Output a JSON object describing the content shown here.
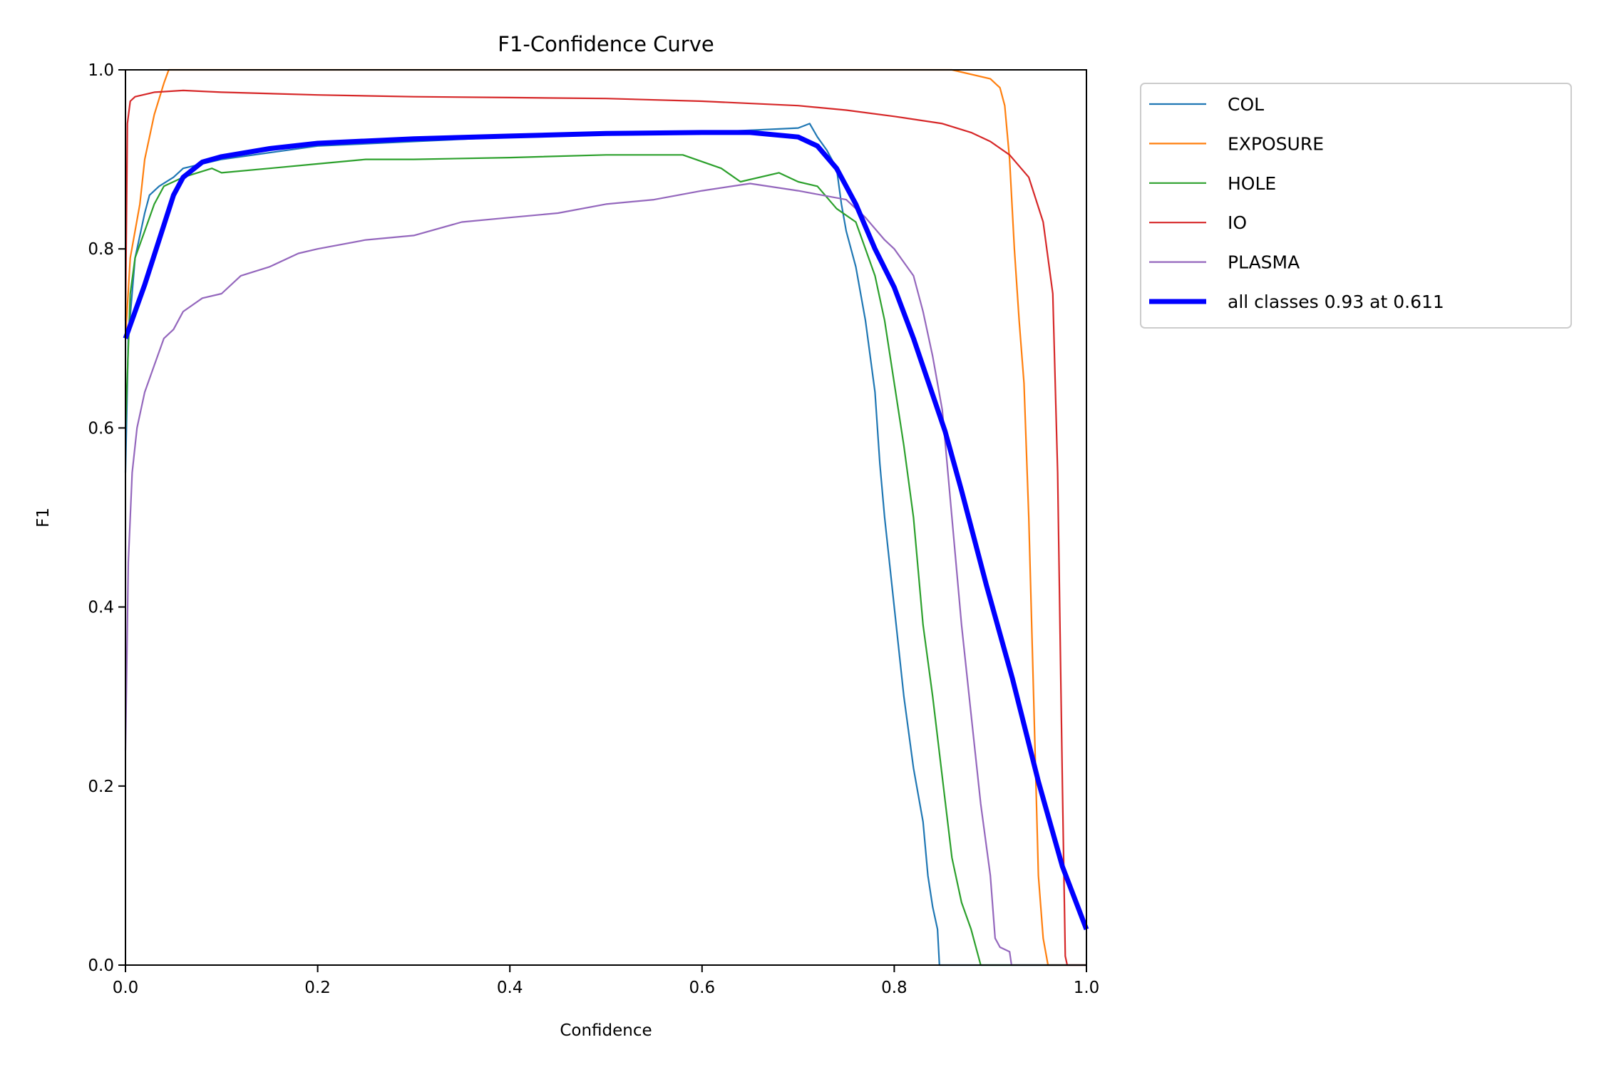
{
  "chart_data": {
    "type": "line",
    "title": "F1-Confidence Curve",
    "xlabel": "Confidence",
    "ylabel": "F1",
    "xlim": [
      0,
      1
    ],
    "ylim": [
      0,
      1
    ],
    "xticks": [
      "0.0",
      "0.2",
      "0.4",
      "0.6",
      "0.8",
      "1.0"
    ],
    "yticks": [
      "0.0",
      "0.2",
      "0.4",
      "0.6",
      "0.8",
      "1.0"
    ],
    "grid": false,
    "legend_position": "outside-top-right",
    "series": [
      {
        "name": "COL",
        "color": "#1f77b4",
        "width": "thin",
        "points": [
          [
            0,
            0.55
          ],
          [
            0.003,
            0.7
          ],
          [
            0.01,
            0.79
          ],
          [
            0.02,
            0.84
          ],
          [
            0.025,
            0.86
          ],
          [
            0.035,
            0.87
          ],
          [
            0.05,
            0.88
          ],
          [
            0.06,
            0.89
          ],
          [
            0.1,
            0.9
          ],
          [
            0.2,
            0.915
          ],
          [
            0.3,
            0.92
          ],
          [
            0.4,
            0.925
          ],
          [
            0.5,
            0.928
          ],
          [
            0.6,
            0.93
          ],
          [
            0.7,
            0.935
          ],
          [
            0.712,
            0.94
          ],
          [
            0.72,
            0.925
          ],
          [
            0.73,
            0.91
          ],
          [
            0.74,
            0.89
          ],
          [
            0.745,
            0.85
          ],
          [
            0.75,
            0.82
          ],
          [
            0.76,
            0.78
          ],
          [
            0.77,
            0.72
          ],
          [
            0.78,
            0.64
          ],
          [
            0.785,
            0.56
          ],
          [
            0.79,
            0.5
          ],
          [
            0.8,
            0.4
          ],
          [
            0.81,
            0.3
          ],
          [
            0.82,
            0.22
          ],
          [
            0.83,
            0.16
          ],
          [
            0.835,
            0.1
          ],
          [
            0.84,
            0.065
          ],
          [
            0.845,
            0.04
          ],
          [
            0.847,
            0
          ],
          [
            1,
            0
          ]
        ]
      },
      {
        "name": "EXPOSURE",
        "color": "#ff7f0e",
        "width": "thin",
        "points": [
          [
            0,
            0.7
          ],
          [
            0.005,
            0.79
          ],
          [
            0.015,
            0.85
          ],
          [
            0.02,
            0.9
          ],
          [
            0.03,
            0.95
          ],
          [
            0.04,
            0.985
          ],
          [
            0.045,
            1.0
          ],
          [
            0.86,
            1.0
          ],
          [
            0.9,
            0.99
          ],
          [
            0.91,
            0.98
          ],
          [
            0.915,
            0.96
          ],
          [
            0.92,
            0.9
          ],
          [
            0.925,
            0.8
          ],
          [
            0.93,
            0.72
          ],
          [
            0.935,
            0.65
          ],
          [
            0.94,
            0.5
          ],
          [
            0.945,
            0.3
          ],
          [
            0.95,
            0.1
          ],
          [
            0.955,
            0.03
          ],
          [
            0.96,
            0
          ],
          [
            1,
            0
          ]
        ]
      },
      {
        "name": "HOLE",
        "color": "#2ca02c",
        "width": "thin",
        "points": [
          [
            0,
            0.6
          ],
          [
            0.005,
            0.75
          ],
          [
            0.01,
            0.79
          ],
          [
            0.02,
            0.82
          ],
          [
            0.03,
            0.85
          ],
          [
            0.04,
            0.87
          ],
          [
            0.06,
            0.88
          ],
          [
            0.09,
            0.89
          ],
          [
            0.1,
            0.885
          ],
          [
            0.15,
            0.89
          ],
          [
            0.2,
            0.895
          ],
          [
            0.25,
            0.9
          ],
          [
            0.3,
            0.9
          ],
          [
            0.4,
            0.902
          ],
          [
            0.5,
            0.905
          ],
          [
            0.58,
            0.905
          ],
          [
            0.62,
            0.89
          ],
          [
            0.64,
            0.875
          ],
          [
            0.68,
            0.885
          ],
          [
            0.7,
            0.875
          ],
          [
            0.72,
            0.87
          ],
          [
            0.74,
            0.845
          ],
          [
            0.76,
            0.83
          ],
          [
            0.77,
            0.8
          ],
          [
            0.78,
            0.77
          ],
          [
            0.79,
            0.72
          ],
          [
            0.8,
            0.65
          ],
          [
            0.81,
            0.58
          ],
          [
            0.82,
            0.5
          ],
          [
            0.83,
            0.38
          ],
          [
            0.84,
            0.3
          ],
          [
            0.85,
            0.21
          ],
          [
            0.86,
            0.12
          ],
          [
            0.87,
            0.07
          ],
          [
            0.88,
            0.04
          ],
          [
            0.89,
            0
          ],
          [
            1,
            0
          ]
        ]
      },
      {
        "name": "IO",
        "color": "#d62728",
        "width": "thin",
        "points": [
          [
            0,
            0.72
          ],
          [
            0.002,
            0.94
          ],
          [
            0.005,
            0.965
          ],
          [
            0.01,
            0.97
          ],
          [
            0.03,
            0.975
          ],
          [
            0.06,
            0.977
          ],
          [
            0.1,
            0.975
          ],
          [
            0.2,
            0.972
          ],
          [
            0.3,
            0.97
          ],
          [
            0.4,
            0.969
          ],
          [
            0.5,
            0.968
          ],
          [
            0.6,
            0.965
          ],
          [
            0.7,
            0.96
          ],
          [
            0.75,
            0.955
          ],
          [
            0.8,
            0.948
          ],
          [
            0.85,
            0.94
          ],
          [
            0.88,
            0.93
          ],
          [
            0.9,
            0.92
          ],
          [
            0.92,
            0.905
          ],
          [
            0.94,
            0.88
          ],
          [
            0.955,
            0.83
          ],
          [
            0.965,
            0.75
          ],
          [
            0.97,
            0.55
          ],
          [
            0.975,
            0.2
          ],
          [
            0.978,
            0.01
          ],
          [
            0.98,
            0
          ],
          [
            1,
            0
          ]
        ]
      },
      {
        "name": "PLASMA",
        "color": "#9467bd",
        "width": "thin",
        "points": [
          [
            0,
            0.24
          ],
          [
            0.003,
            0.45
          ],
          [
            0.007,
            0.55
          ],
          [
            0.012,
            0.6
          ],
          [
            0.02,
            0.64
          ],
          [
            0.03,
            0.67
          ],
          [
            0.04,
            0.7
          ],
          [
            0.05,
            0.71
          ],
          [
            0.06,
            0.73
          ],
          [
            0.08,
            0.745
          ],
          [
            0.1,
            0.75
          ],
          [
            0.12,
            0.77
          ],
          [
            0.15,
            0.78
          ],
          [
            0.18,
            0.795
          ],
          [
            0.2,
            0.8
          ],
          [
            0.25,
            0.81
          ],
          [
            0.3,
            0.815
          ],
          [
            0.35,
            0.83
          ],
          [
            0.4,
            0.835
          ],
          [
            0.45,
            0.84
          ],
          [
            0.5,
            0.85
          ],
          [
            0.55,
            0.855
          ],
          [
            0.6,
            0.865
          ],
          [
            0.65,
            0.873
          ],
          [
            0.7,
            0.865
          ],
          [
            0.75,
            0.855
          ],
          [
            0.77,
            0.835
          ],
          [
            0.79,
            0.81
          ],
          [
            0.8,
            0.8
          ],
          [
            0.82,
            0.77
          ],
          [
            0.83,
            0.73
          ],
          [
            0.84,
            0.68
          ],
          [
            0.85,
            0.62
          ],
          [
            0.86,
            0.5
          ],
          [
            0.87,
            0.38
          ],
          [
            0.88,
            0.28
          ],
          [
            0.89,
            0.18
          ],
          [
            0.9,
            0.1
          ],
          [
            0.905,
            0.03
          ],
          [
            0.91,
            0.02
          ],
          [
            0.92,
            0.015
          ],
          [
            0.922,
            0
          ],
          [
            1,
            0
          ]
        ]
      },
      {
        "name": "all classes 0.93 at 0.611",
        "color": "#0000ff",
        "width": "thick",
        "points": [
          [
            0,
            0.7
          ],
          [
            0.02,
            0.76
          ],
          [
            0.05,
            0.86
          ],
          [
            0.06,
            0.88
          ],
          [
            0.08,
            0.897
          ],
          [
            0.1,
            0.903
          ],
          [
            0.15,
            0.912
          ],
          [
            0.2,
            0.918
          ],
          [
            0.3,
            0.923
          ],
          [
            0.4,
            0.926
          ],
          [
            0.5,
            0.929
          ],
          [
            0.6,
            0.93
          ],
          [
            0.65,
            0.93
          ],
          [
            0.7,
            0.925
          ],
          [
            0.72,
            0.915
          ],
          [
            0.74,
            0.89
          ],
          [
            0.76,
            0.85
          ],
          [
            0.78,
            0.8
          ],
          [
            0.8,
            0.757
          ],
          [
            0.82,
            0.7
          ],
          [
            0.853,
            0.596
          ],
          [
            0.87,
            0.53
          ],
          [
            0.896,
            0.424
          ],
          [
            0.923,
            0.32
          ],
          [
            0.95,
            0.205
          ],
          [
            0.975,
            0.11
          ],
          [
            1,
            0.04
          ]
        ]
      }
    ]
  }
}
